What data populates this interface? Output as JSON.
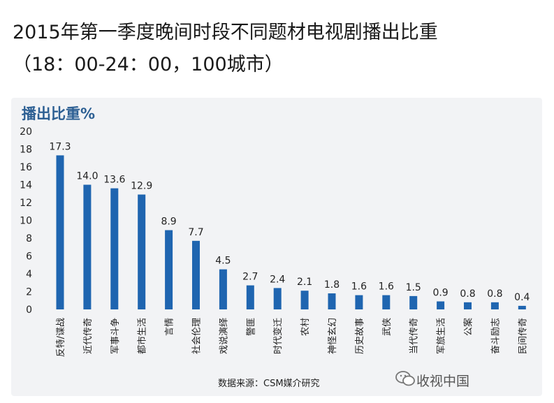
{
  "title_line1": "2015年第一季度晚间时段不同题材电视剧播出比重",
  "title_line2": "（18：00-24：00，100城市）",
  "ylabel": "播出比重%",
  "source": "数据来源：CSM媒介研究",
  "watermark": "收视中国",
  "colors": {
    "bar": "#1f65b0",
    "panel": "#f2f3f5",
    "axis_label": "#2c5f93"
  },
  "chart_data": {
    "type": "bar",
    "title": "2015年第一季度晚间时段不同题材电视剧播出比重",
    "subtitle": "（18：00-24：00，100城市）",
    "ylabel": "播出比重%",
    "xlabel": "",
    "ylim": [
      0,
      20
    ],
    "yticks": [
      0,
      2,
      4,
      6,
      8,
      10,
      12,
      14,
      16,
      18,
      20
    ],
    "grid": false,
    "categories": [
      "反特/谍战",
      "近代传奇",
      "军事斗争",
      "都市生活",
      "言情",
      "社会伦理",
      "戏说演绎",
      "警匪",
      "时代变迁",
      "农村",
      "神怪玄幻",
      "历史故事",
      "武侠",
      "当代传奇",
      "军旅生活",
      "公案",
      "奋斗励志",
      "民间传奇"
    ],
    "values": [
      17.3,
      14.0,
      13.6,
      12.9,
      8.9,
      7.7,
      4.5,
      2.7,
      2.4,
      2.1,
      1.8,
      1.6,
      1.6,
      1.5,
      0.9,
      0.8,
      0.8,
      0.4
    ],
    "value_labels": [
      "17.3",
      "14.0",
      "13.6",
      "12.9",
      "8.9",
      "7.7",
      "4.5",
      "2.7",
      "2.4",
      "2.1",
      "1.8",
      "1.6",
      "1.6",
      "1.5",
      "0.9",
      "0.8",
      "0.8",
      "0.4"
    ]
  }
}
